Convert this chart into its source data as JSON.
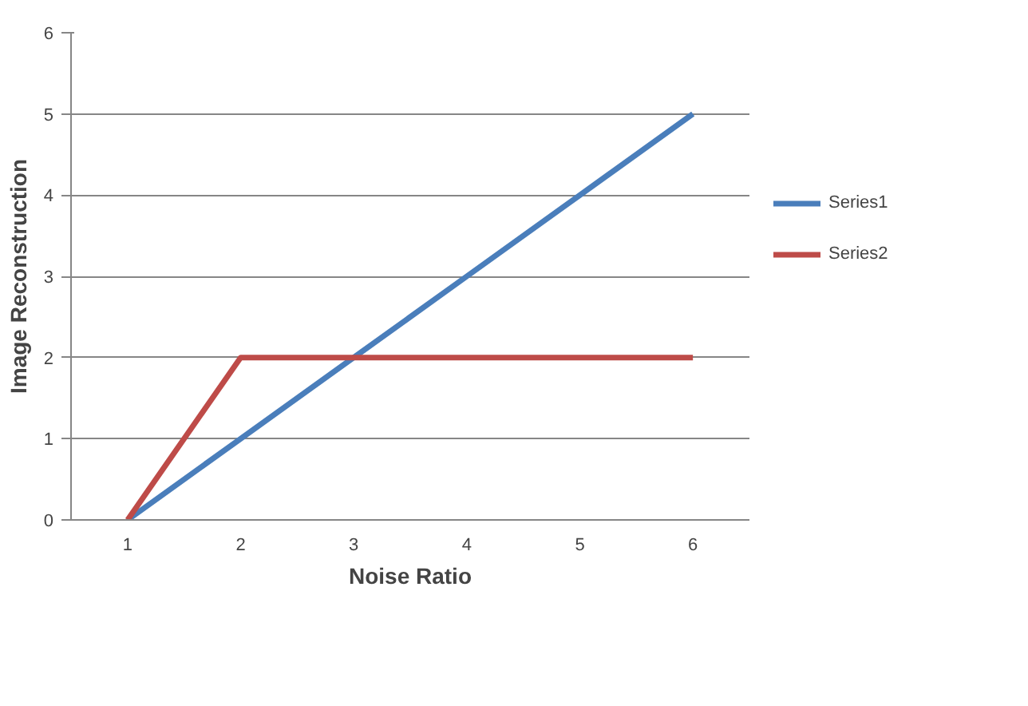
{
  "chart_data": {
    "type": "line",
    "xlabel": "Noise Ratio",
    "ylabel": "Image Reconstruction",
    "categories": [
      "1",
      "2",
      "3",
      "4",
      "5",
      "6"
    ],
    "series": [
      {
        "name": "Series1",
        "color": "#4a7ebb",
        "values": [
          0,
          1,
          2,
          3,
          4,
          5
        ]
      },
      {
        "name": "Series2",
        "color": "#be4b48",
        "values": [
          0,
          2,
          2,
          2,
          2,
          2
        ]
      }
    ],
    "ylim": [
      0,
      6
    ],
    "yticks": [
      0,
      1,
      2,
      3,
      4,
      5,
      6
    ],
    "grid": "y",
    "legend": "right",
    "marker": "none",
    "line_style": "solid"
  }
}
